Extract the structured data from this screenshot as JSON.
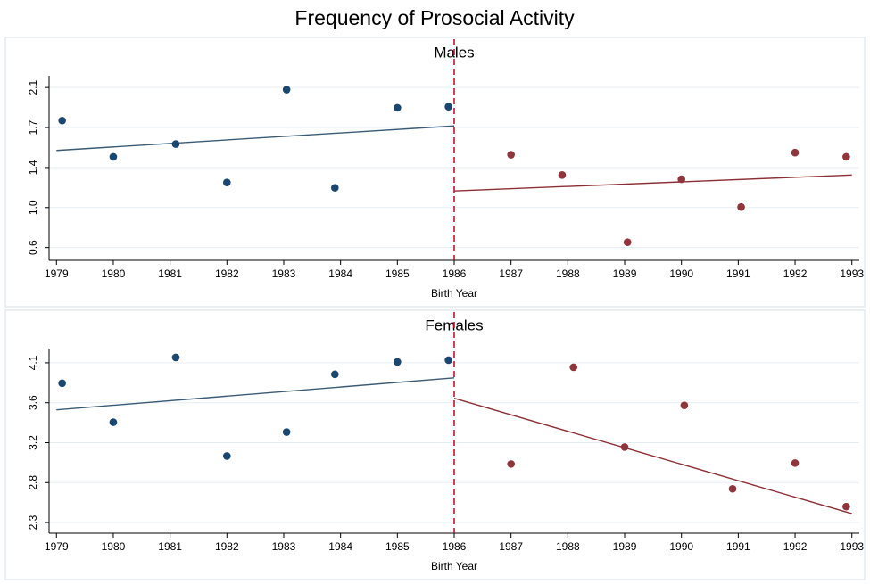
{
  "title": "Frequency of Prosocial Activity",
  "chart_data": [
    {
      "type": "scatter",
      "title": "Males",
      "x_label": "Birth Year",
      "xlim": [
        1978.87,
        1993.13
      ],
      "xticks": [
        1979,
        1980,
        1981,
        1982,
        1983,
        1984,
        1985,
        1986,
        1987,
        1988,
        1989,
        1990,
        1991,
        1992,
        1993
      ],
      "ylim": [
        0.48,
        2.21
      ],
      "yticks": [
        {
          "value": 0.6,
          "label": "0.6"
        },
        {
          "value": 0.975,
          "label": "1.0"
        },
        {
          "value": 1.35,
          "label": "1.4"
        },
        {
          "value": 1.725,
          "label": "1.7"
        },
        {
          "value": 2.1,
          "label": "2.1"
        }
      ],
      "grid": true,
      "cutoff": 1986,
      "cutoff_color": "#c8102e",
      "series": [
        {
          "color": "#1a476f",
          "x": [
            1979.1,
            1980,
            1981.1,
            1982,
            1983.05,
            1983.9,
            1985,
            1985.9
          ],
          "values": [
            1.79,
            1.45,
            1.57,
            1.21,
            2.08,
            1.16,
            1.91,
            1.92
          ]
        },
        {
          "color": "#90353b",
          "x": [
            1987,
            1987.9,
            1989.05,
            1990,
            1991.05,
            1992,
            1992.9
          ],
          "values": [
            1.47,
            1.28,
            0.65,
            1.24,
            0.98,
            1.49,
            1.45
          ]
        }
      ],
      "fit_lines": [
        {
          "color": "#3a5b75",
          "x": [
            1979,
            1986
          ],
          "values": [
            1.51,
            1.74
          ]
        },
        {
          "color": "#8b2f35",
          "x": [
            1986,
            1993
          ],
          "values": [
            1.13,
            1.28
          ]
        }
      ]
    },
    {
      "type": "scatter",
      "title": "Females",
      "x_label": "Birth Year",
      "xlim": [
        1978.87,
        1993.13
      ],
      "xticks": [
        1979,
        1980,
        1981,
        1982,
        1983,
        1984,
        1985,
        1986,
        1987,
        1988,
        1989,
        1990,
        1991,
        1992,
        1993
      ],
      "ylim": [
        2.18,
        4.26
      ],
      "yticks": [
        {
          "value": 2.3,
          "label": "2.3"
        },
        {
          "value": 2.75,
          "label": "2.8"
        },
        {
          "value": 3.2,
          "label": "3.2"
        },
        {
          "value": 3.65,
          "label": "3.6"
        },
        {
          "value": 4.1,
          "label": "4.1"
        }
      ],
      "grid": true,
      "cutoff": 1986,
      "cutoff_color": "#c8102e",
      "series": [
        {
          "color": "#1a476f",
          "x": [
            1979.1,
            1980,
            1981.1,
            1982,
            1983.05,
            1983.9,
            1985,
            1985.9
          ],
          "values": [
            3.87,
            3.43,
            4.16,
            3.05,
            3.32,
            3.97,
            4.11,
            4.13
          ]
        },
        {
          "color": "#90353b",
          "x": [
            1987,
            1988.1,
            1989,
            1990.05,
            1990.9,
            1992,
            1992.9
          ],
          "values": [
            2.96,
            4.05,
            3.15,
            3.62,
            2.68,
            2.97,
            2.48
          ]
        }
      ],
      "fit_lines": [
        {
          "color": "#3a5b75",
          "x": [
            1979,
            1986
          ],
          "values": [
            3.57,
            3.93
          ]
        },
        {
          "color": "#8b2f35",
          "x": [
            1986,
            1993
          ],
          "values": [
            3.7,
            2.4
          ]
        }
      ]
    }
  ]
}
